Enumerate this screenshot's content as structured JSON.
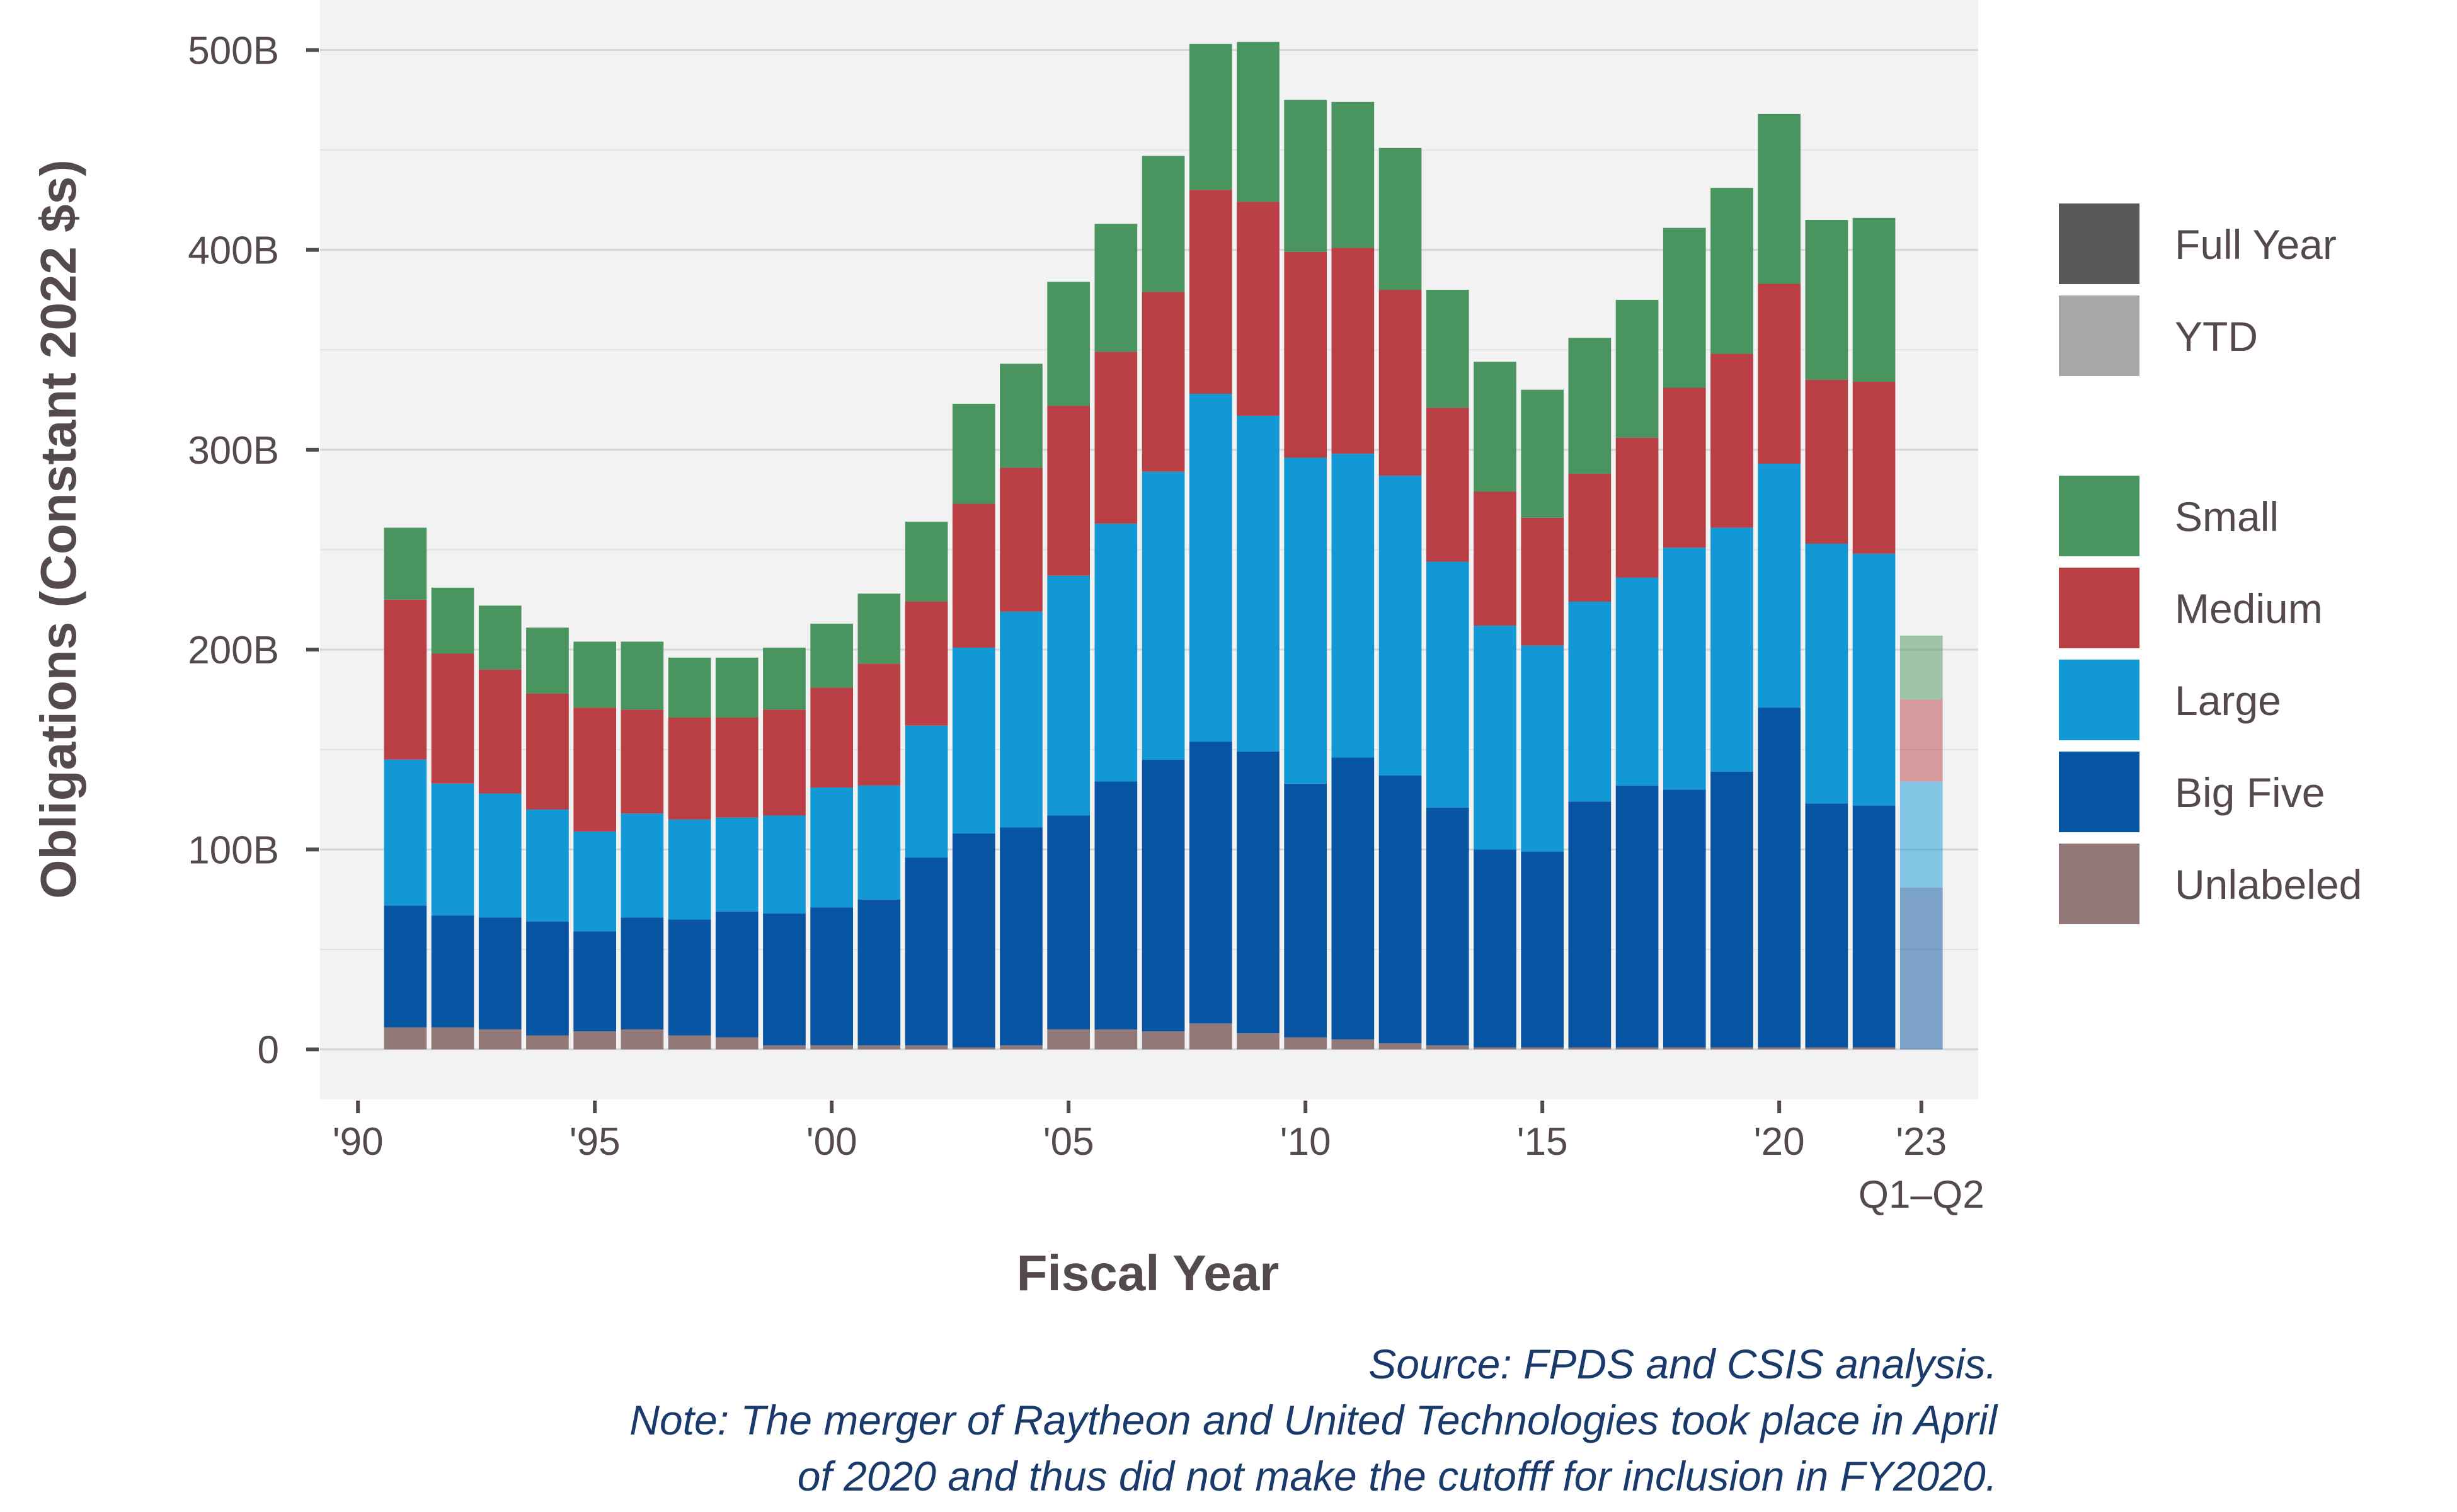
{
  "chart_data": {
    "type": "bar",
    "stacked": true,
    "ylabel": "Obligations (Constant 2022 $s)",
    "xlabel": "Fiscal Year",
    "ylim": [
      -25,
      525
    ],
    "y_ticks": [
      0,
      100,
      200,
      300,
      400,
      500
    ],
    "y_tick_labels": [
      "0",
      "100B",
      "200B",
      "300B",
      "400B",
      "500B"
    ],
    "xlim": [
      1989.2,
      2024.2
    ],
    "x_ticks": [
      1990,
      1995,
      2000,
      2005,
      2010,
      2015,
      2020,
      2023
    ],
    "x_tick_labels": [
      "'90",
      "'95",
      "'00",
      "'05",
      "'10",
      "'15",
      "'20",
      "'23"
    ],
    "x_tick_sublabel": "Q1–Q2",
    "grid": true,
    "legend_position": "right",
    "legend_period": [
      {
        "label": "Full Year",
        "color": "#595959"
      },
      {
        "label": "YTD",
        "color": "#a8a8a8"
      }
    ],
    "legend_size": [
      {
        "label": "Small",
        "color": "#4a9460"
      },
      {
        "label": "Medium",
        "color": "#b93f45"
      },
      {
        "label": "Large",
        "color": "#1398d6"
      },
      {
        "label": "Big Five",
        "color": "#0754a3"
      },
      {
        "label": "Unlabeled",
        "color": "#937878"
      }
    ],
    "years": [
      1991,
      1992,
      1993,
      1994,
      1995,
      1996,
      1997,
      1998,
      1999,
      2000,
      2001,
      2002,
      2003,
      2004,
      2005,
      2006,
      2007,
      2008,
      2009,
      2010,
      2011,
      2012,
      2013,
      2014,
      2015,
      2016,
      2017,
      2018,
      2019,
      2020,
      2021,
      2022,
      2023
    ],
    "ytd_years": [
      2023
    ],
    "series": [
      {
        "name": "Unlabeled",
        "color": "#937878",
        "values": [
          11,
          11,
          10,
          7,
          9,
          10,
          7,
          6,
          2,
          2,
          2,
          2,
          1,
          2,
          10,
          10,
          9,
          13,
          8,
          6,
          5,
          3,
          2,
          1,
          1,
          1,
          1,
          1,
          1,
          1,
          1,
          1,
          0
        ]
      },
      {
        "name": "Big Five",
        "color": "#0754a3",
        "values": [
          61,
          56,
          56,
          57,
          50,
          56,
          58,
          63,
          66,
          69,
          73,
          94,
          107,
          109,
          107,
          124,
          136,
          141,
          141,
          127,
          141,
          134,
          119,
          99,
          98,
          123,
          131,
          129,
          138,
          170,
          122,
          121,
          81
        ]
      },
      {
        "name": "Large",
        "color": "#1398d6",
        "values": [
          73,
          66,
          62,
          56,
          50,
          52,
          50,
          47,
          49,
          60,
          57,
          66,
          93,
          108,
          120,
          129,
          144,
          174,
          168,
          163,
          152,
          150,
          123,
          112,
          103,
          100,
          104,
          121,
          122,
          122,
          130,
          126,
          53
        ]
      },
      {
        "name": "Medium",
        "color": "#b93f45",
        "values": [
          80,
          65,
          62,
          58,
          62,
          52,
          51,
          50,
          53,
          50,
          61,
          62,
          72,
          72,
          85,
          86,
          90,
          102,
          107,
          103,
          103,
          93,
          77,
          67,
          64,
          64,
          70,
          80,
          87,
          90,
          82,
          86,
          41
        ]
      },
      {
        "name": "Small",
        "color": "#4a9460",
        "values": [
          36,
          33,
          32,
          33,
          33,
          34,
          30,
          30,
          31,
          32,
          35,
          40,
          50,
          52,
          62,
          64,
          68,
          73,
          80,
          76,
          73,
          71,
          59,
          65,
          64,
          68,
          69,
          80,
          83,
          85,
          80,
          82,
          32
        ]
      }
    ],
    "annotations": [
      "Source: FPDS and CSIS analysis.",
      "Note: The merger of Raytheon and United Technologies took place in April",
      "of 2020 and thus did not make the cutofff for inclusion in FY2020."
    ]
  }
}
